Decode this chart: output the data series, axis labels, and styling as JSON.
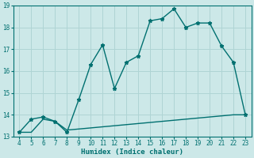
{
  "x": [
    4,
    5,
    6,
    7,
    8,
    9,
    10,
    11,
    12,
    13,
    14,
    15,
    16,
    17,
    18,
    19,
    20,
    21,
    22,
    23
  ],
  "y_upper": [
    13.2,
    13.8,
    13.9,
    13.7,
    13.2,
    14.7,
    16.3,
    17.2,
    15.2,
    16.4,
    16.7,
    18.3,
    18.4,
    18.85,
    18.0,
    18.2,
    18.2,
    17.15,
    16.4,
    14.0
  ],
  "y_lower": [
    13.2,
    13.2,
    13.8,
    13.7,
    13.3,
    13.35,
    13.4,
    13.45,
    13.5,
    13.55,
    13.6,
    13.65,
    13.7,
    13.75,
    13.8,
    13.85,
    13.9,
    13.95,
    14.0,
    14.0
  ],
  "line_color": "#007070",
  "bg_color": "#cce8e8",
  "grid_color": "#afd4d4",
  "xlabel": "Humidex (Indice chaleur)",
  "xlim": [
    3.5,
    23.5
  ],
  "ylim": [
    13.0,
    19.0
  ],
  "yticks": [
    13,
    14,
    15,
    16,
    17,
    18,
    19
  ],
  "xticks": [
    4,
    5,
    6,
    7,
    8,
    9,
    10,
    11,
    12,
    13,
    14,
    15,
    16,
    17,
    18,
    19,
    20,
    21,
    22,
    23
  ],
  "marker": "*",
  "marker_size": 3.5,
  "linewidth": 1.0
}
